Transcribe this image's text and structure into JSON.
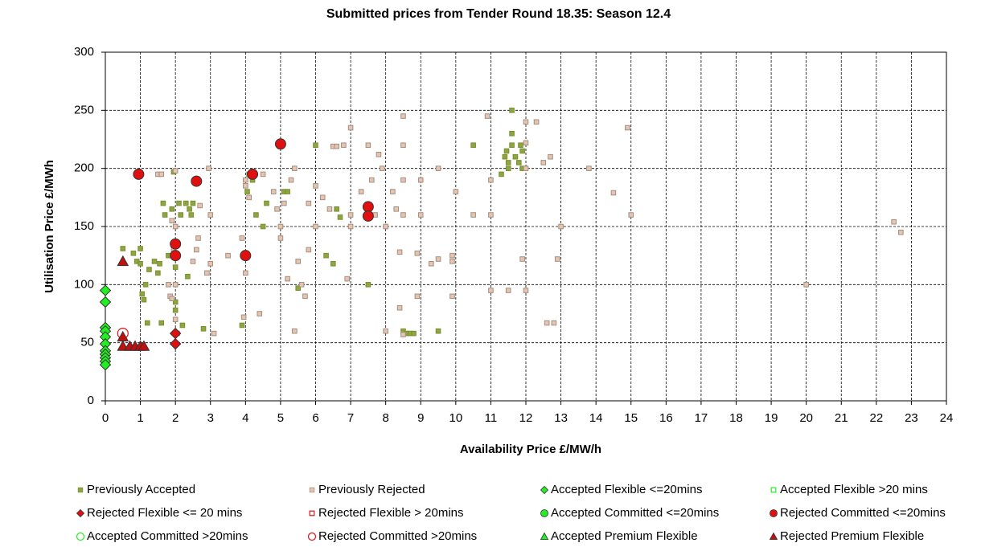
{
  "chart_data": {
    "type": "scatter",
    "title": "Submitted prices from Tender Round 18.35: Season 12.4",
    "x_label": "Availability Price £/MW/h",
    "y_label": "Utilisation Price £/MWh",
    "xlim": [
      0,
      24
    ],
    "ylim": [
      0,
      300
    ],
    "xticks": [
      0,
      1,
      2,
      3,
      4,
      5,
      6,
      7,
      8,
      9,
      10,
      11,
      12,
      13,
      14,
      15,
      16,
      17,
      18,
      19,
      20,
      21,
      22,
      23,
      24
    ],
    "yticks": [
      0,
      50,
      100,
      150,
      200,
      250,
      300
    ],
    "grid": true,
    "legend": "bottom",
    "series": [
      {
        "name": "Previously Accepted",
        "color": "#8ea640",
        "marker": "square",
        "filled": true,
        "x": [
          0.5,
          0.8,
          0.9,
          1,
          1,
          1.05,
          1.1,
          1.15,
          1.2,
          1.25,
          1.4,
          1.5,
          1.55,
          1.6,
          1.65,
          1.7,
          1.8,
          1.9,
          1.95,
          2,
          2,
          2,
          2.05,
          2.1,
          2.15,
          2.2,
          2.3,
          2.35,
          2.4,
          2.45,
          2.5,
          2.8,
          3.9,
          4.05,
          4.1,
          4.2,
          4.3,
          4.5,
          4.6,
          5.1,
          5.2,
          5.5,
          6,
          6.3,
          6.5,
          6.6,
          6.7,
          7.5,
          8.5,
          8.6,
          8.7,
          8.8,
          9.5,
          10.5,
          11.3,
          11.4,
          11.45,
          11.5,
          11.5,
          11.6,
          11.6,
          11.6,
          11.7,
          11.8,
          11.85,
          11.9,
          11.9
        ],
        "values": [
          131,
          127,
          120,
          131,
          118,
          92,
          87,
          100,
          67,
          113,
          120,
          110,
          118,
          67,
          170,
          160,
          125,
          165,
          197,
          115,
          85,
          78,
          58,
          170,
          160,
          65,
          170,
          107,
          165,
          160,
          170,
          62,
          65,
          180,
          195,
          190,
          160,
          150,
          170,
          180,
          180,
          97,
          220,
          125,
          118,
          165,
          158,
          100,
          60,
          58,
          58,
          58,
          60,
          220,
          195,
          210,
          215,
          200,
          205,
          250,
          230,
          220,
          210,
          205,
          220,
          200,
          215
        ]
      },
      {
        "name": "Previously Rejected",
        "color": "#e8c4b0",
        "marker": "square",
        "filled": true,
        "x": [
          1.5,
          1.6,
          1.9,
          1.95,
          2,
          2,
          1.8,
          1.85,
          1.9,
          2,
          2,
          2.5,
          2.6,
          2.65,
          2.7,
          2.9,
          2.95,
          3,
          3,
          3.1,
          3.5,
          3.9,
          3.95,
          4,
          4,
          4,
          4.1,
          4.4,
          4.5,
          4.8,
          4.9,
          5,
          5,
          5.1,
          5.2,
          5.3,
          5.4,
          5.4,
          5.5,
          5.6,
          5.7,
          5.8,
          5.8,
          6,
          6,
          6.2,
          6.4,
          6.5,
          6.6,
          6.8,
          6.9,
          7,
          7,
          7,
          7.3,
          7.5,
          7.6,
          7.7,
          7.8,
          7.9,
          8,
          8,
          8.2,
          8.3,
          8.4,
          8.4,
          8.5,
          8.5,
          8.5,
          8.5,
          8.5,
          8.9,
          8.9,
          9,
          9,
          9.3,
          9.5,
          9.5,
          9.9,
          9.9,
          9.9,
          10,
          10.5,
          10.9,
          11,
          11,
          11,
          11.5,
          11.9,
          12,
          12,
          12,
          12,
          12.3,
          12.5,
          12.6,
          12.7,
          12.8,
          12.9,
          13,
          13.8,
          14.5,
          14.9,
          15,
          20,
          22.5,
          22.7
        ],
        "values": [
          195,
          195,
          155,
          130,
          198,
          150,
          100,
          90,
          88,
          100,
          70,
          120,
          130,
          140,
          168,
          110,
          200,
          160,
          118,
          58,
          125,
          140,
          72,
          110,
          190,
          185,
          175,
          75,
          195,
          180,
          165,
          140,
          150,
          170,
          105,
          190,
          60,
          200,
          120,
          100,
          90,
          130,
          170,
          185,
          150,
          175,
          165,
          219,
          219,
          220,
          105,
          235,
          160,
          150,
          180,
          220,
          190,
          160,
          212,
          200,
          150,
          60,
          180,
          165,
          128,
          80,
          245,
          220,
          190,
          160,
          57,
          127,
          90,
          190,
          160,
          118,
          200,
          122,
          125,
          120,
          90,
          180,
          160,
          245,
          190,
          160,
          95,
          95,
          122,
          95,
          240,
          222,
          200,
          240,
          205,
          67,
          210,
          67,
          122,
          150,
          200,
          179,
          235,
          160,
          100,
          154,
          145
        ]
      },
      {
        "name": "Accepted Flexible <=20mins",
        "color": "#22ee22",
        "marker": "diamond",
        "filled": true,
        "x": [
          0,
          0,
          0,
          0,
          0,
          0,
          0,
          0,
          0,
          0,
          0
        ],
        "values": [
          95,
          85,
          63,
          60,
          55,
          49,
          43,
          40,
          37,
          34,
          31
        ]
      },
      {
        "name": "Accepted Flexible >20 mins",
        "color": "#22ee22",
        "marker": "square",
        "filled": false,
        "x": [],
        "values": []
      },
      {
        "name": "Rejected Flexible <= 20 mins",
        "color": "#e01010",
        "marker": "diamond",
        "filled": true,
        "x": [
          2,
          2
        ],
        "values": [
          58,
          49
        ]
      },
      {
        "name": "Rejected Flexible > 20mins",
        "color": "#e01010",
        "marker": "square",
        "filled": false,
        "x": [],
        "values": []
      },
      {
        "name": "Accepted Committed <=20mins",
        "color": "#22ee22",
        "marker": "circle",
        "filled": true,
        "x": [],
        "values": []
      },
      {
        "name": "Rejected Committed <=20mins",
        "color": "#e01010",
        "marker": "circle",
        "filled": true,
        "x": [
          0.95,
          2.6,
          2,
          2,
          4,
          4.2,
          5,
          7.5,
          7.5
        ],
        "values": [
          195,
          189,
          135,
          125,
          125,
          195,
          221,
          167,
          159
        ]
      },
      {
        "name": "Accepted Committed >20mins",
        "color": "#22ee22",
        "marker": "circle",
        "filled": false,
        "x": [],
        "values": []
      },
      {
        "name": "Rejected Committed >20mins",
        "color": "#e01010",
        "marker": "circle",
        "filled": false,
        "x": [
          0.5
        ],
        "values": [
          58
        ]
      },
      {
        "name": "Accepted Premium Flexible",
        "color": "#22ee22",
        "marker": "triangle",
        "filled": true,
        "x": [],
        "values": []
      },
      {
        "name": "Rejected Premium Flexible",
        "color": "#c01010",
        "marker": "triangle",
        "filled": true,
        "x": [
          0.5,
          0.5,
          0.5,
          0.7,
          0.85,
          1,
          1.1
        ],
        "values": [
          120,
          55,
          47,
          47,
          47,
          47,
          47
        ]
      }
    ]
  }
}
